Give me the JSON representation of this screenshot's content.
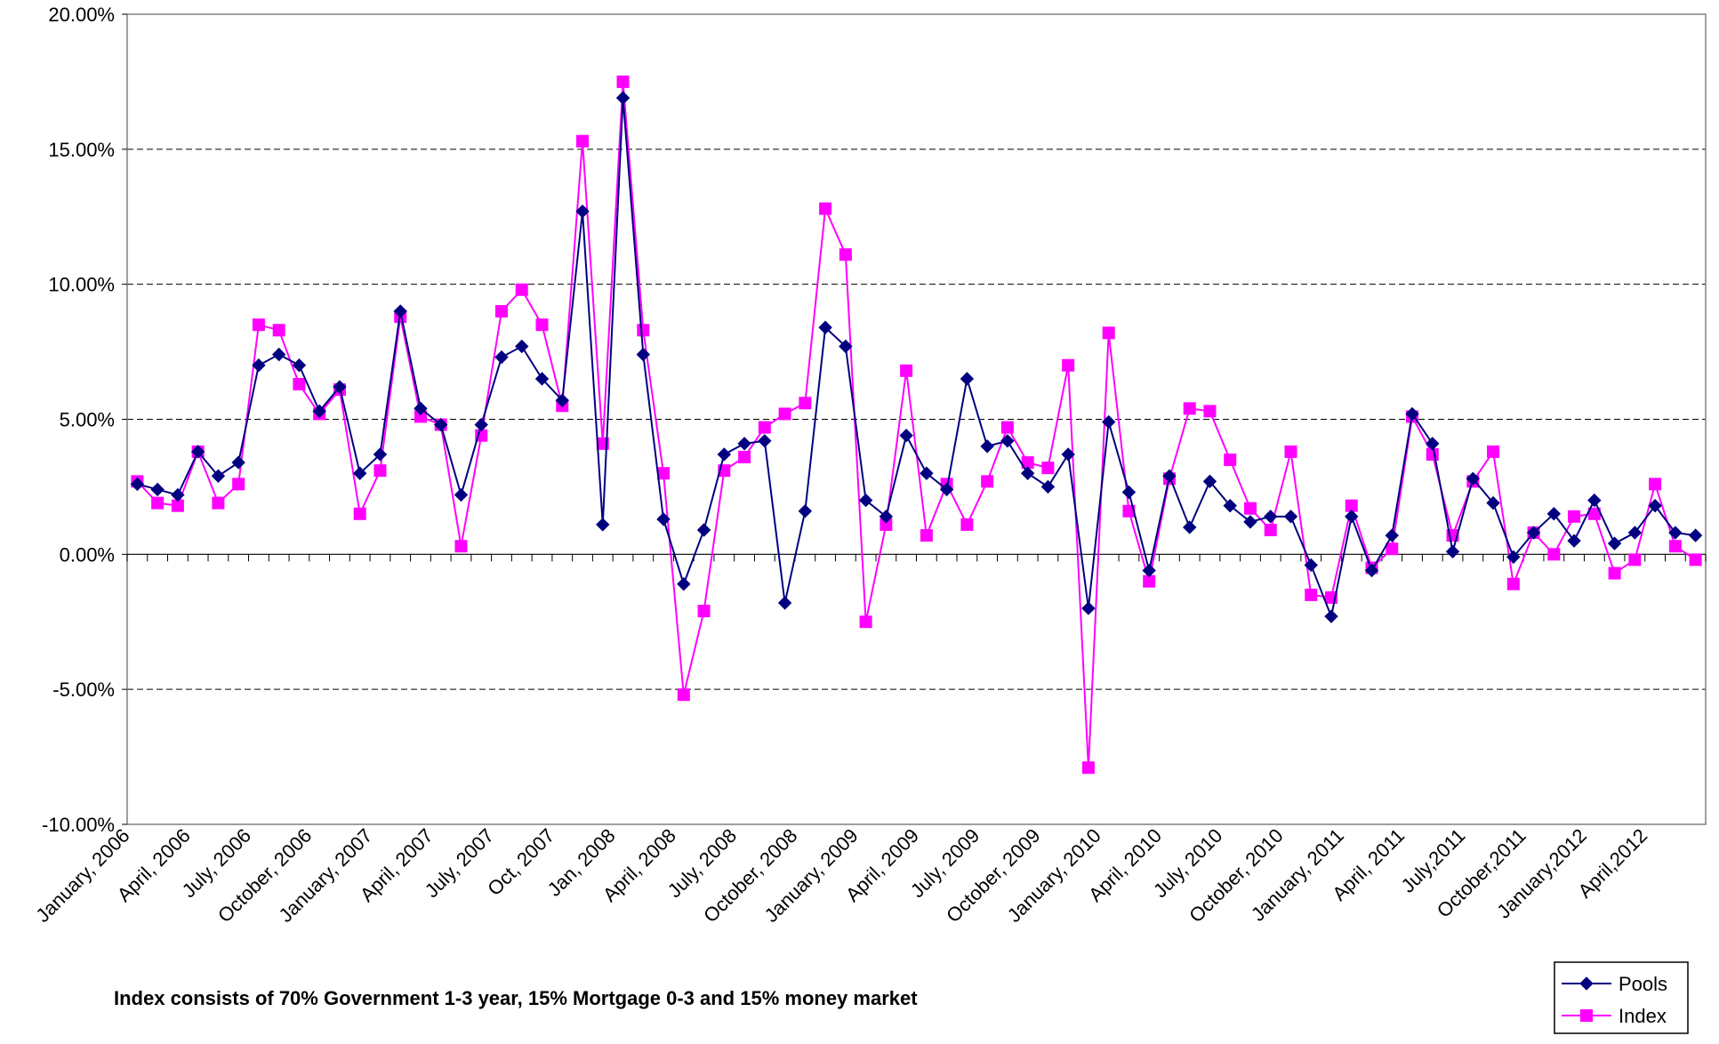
{
  "chart_data": {
    "type": "line",
    "title": "",
    "xlabel": "",
    "ylabel": "",
    "ylim": [
      -10,
      20
    ],
    "y_ticks": [
      -10,
      -5,
      0,
      5,
      10,
      15,
      20
    ],
    "y_tick_labels": [
      "-10.00%",
      "-5.00%",
      "0.00%",
      "5.00%",
      "10.00%",
      "15.00%",
      "20.00%"
    ],
    "grid": "horizontal dashed",
    "legend_position": "bottom-right",
    "x_tick_labels": [
      "January, 2006",
      "April, 2006",
      "July, 2006",
      "October, 2006",
      "January, 2007",
      "April, 2007",
      "July, 2007",
      "Oct, 2007",
      "Jan, 2008",
      "April, 2008",
      "July, 2008",
      "October, 2008",
      "January, 2009",
      "April, 2009",
      "July, 2009",
      "October, 2009",
      "January, 2010",
      "April, 2010",
      "July, 2010",
      "October, 2010",
      "January, 2011",
      "April, 2011",
      "July,2011",
      "October,2011",
      "January,2012",
      "April,2012"
    ],
    "x_tick_label_every": 3,
    "series": [
      {
        "name": "Pools",
        "color": "#000080",
        "marker": "diamond",
        "values": [
          2.6,
          2.4,
          2.2,
          3.8,
          2.9,
          3.4,
          7.0,
          7.4,
          7.0,
          5.3,
          6.2,
          3.0,
          3.7,
          9.0,
          5.4,
          4.8,
          2.2,
          4.8,
          7.3,
          7.7,
          6.5,
          5.7,
          12.7,
          1.1,
          16.9,
          7.4,
          1.3,
          -1.1,
          0.9,
          3.7,
          4.1,
          4.2,
          -1.8,
          1.6,
          8.4,
          7.7,
          2.0,
          1.4,
          4.4,
          3.0,
          2.4,
          6.5,
          4.0,
          4.2,
          3.0,
          2.5,
          3.7,
          -2.0,
          4.9,
          2.3,
          -0.6,
          2.9,
          1.0,
          2.7,
          1.8,
          1.2,
          1.4,
          1.4,
          -0.4,
          -2.3,
          1.4,
          -0.6,
          0.7,
          5.2,
          4.1,
          0.1,
          2.8,
          1.9,
          -0.1,
          0.8,
          1.5,
          0.5,
          2.0,
          0.4,
          0.8,
          1.8,
          0.8,
          0.7
        ]
      },
      {
        "name": "Index",
        "color": "#FF00FF",
        "marker": "square",
        "values": [
          2.7,
          1.9,
          1.8,
          3.8,
          1.9,
          2.6,
          8.5,
          8.3,
          6.3,
          5.2,
          6.1,
          1.5,
          3.1,
          8.8,
          5.1,
          4.8,
          0.3,
          4.4,
          9.0,
          9.8,
          8.5,
          5.5,
          15.3,
          4.1,
          17.5,
          8.3,
          3.0,
          -5.2,
          -2.1,
          3.1,
          3.6,
          4.7,
          5.2,
          5.6,
          12.8,
          11.1,
          -2.5,
          1.1,
          6.8,
          0.7,
          2.6,
          1.1,
          2.7,
          4.7,
          3.4,
          3.2,
          7.0,
          -7.9,
          8.2,
          1.6,
          -1.0,
          2.8,
          5.4,
          5.3,
          3.5,
          1.7,
          0.9,
          3.8,
          -1.5,
          -1.6,
          1.8,
          -0.5,
          0.2,
          5.1,
          3.7,
          0.7,
          2.7,
          3.8,
          -1.1,
          0.8,
          0.0,
          1.4,
          1.5,
          -0.7,
          -0.2,
          2.6,
          0.3,
          -0.2
        ]
      }
    ]
  },
  "footnote": "Index consists of 70% Government 1-3 year, 15% Mortgage 0-3 and 15% money market"
}
